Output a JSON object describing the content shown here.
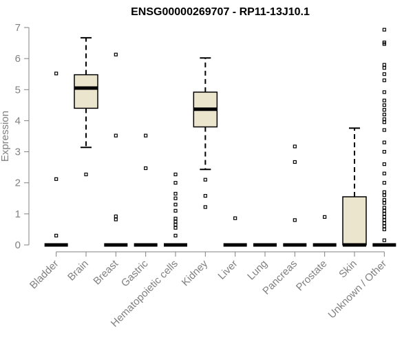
{
  "chart_data": {
    "type": "boxplot",
    "title": "ENSG00000269707 - RP11-13J10.1",
    "xlabel": "",
    "ylabel": "Expression",
    "ylim": [
      0,
      7
    ],
    "yticks": [
      0,
      1,
      2,
      3,
      4,
      5,
      6,
      7
    ],
    "colors": {
      "box_fill": "#ece5cd",
      "stroke": "#000000",
      "axis": "#808080"
    },
    "categories": [
      "Bladder",
      "Brain",
      "Breast",
      "Gastric",
      "Hematopoietic cells",
      "Kidney",
      "Liver",
      "Lung",
      "Pancreas",
      "Prostate",
      "Skin",
      "Unknown / Other"
    ],
    "boxes": [
      {
        "category": "Bladder",
        "q1": 0,
        "median": 0,
        "q3": 0,
        "whisker_low": 0,
        "whisker_high": 0,
        "outliers": [
          0.3,
          2.12,
          5.52
        ]
      },
      {
        "category": "Brain",
        "q1": 4.4,
        "median": 5.05,
        "q3": 5.48,
        "whisker_low": 3.14,
        "whisker_high": 6.67,
        "outliers": [
          2.27
        ]
      },
      {
        "category": "Breast",
        "q1": 0,
        "median": 0,
        "q3": 0,
        "whisker_low": 0,
        "whisker_high": 0,
        "outliers": [
          0.82,
          0.92,
          3.52,
          6.13
        ]
      },
      {
        "category": "Gastric",
        "q1": 0,
        "median": 0,
        "q3": 0,
        "whisker_low": 0,
        "whisker_high": 0,
        "outliers": [
          2.47,
          3.52
        ]
      },
      {
        "category": "Hematopoietic cells",
        "q1": 0,
        "median": 0,
        "q3": 0,
        "whisker_low": 0,
        "whisker_high": 0,
        "outliers": [
          0.3,
          0.55,
          0.65,
          0.75,
          0.85,
          1.1,
          1.3,
          1.5,
          1.65,
          2.0,
          2.27
        ]
      },
      {
        "category": "Kidney",
        "q1": 3.8,
        "median": 4.37,
        "q3": 4.92,
        "whisker_low": 2.43,
        "whisker_high": 6.02,
        "outliers": [
          1.22,
          1.58,
          2.1
        ]
      },
      {
        "category": "Liver",
        "q1": 0,
        "median": 0,
        "q3": 0,
        "whisker_low": 0,
        "whisker_high": 0,
        "outliers": [
          0.86
        ]
      },
      {
        "category": "Lung",
        "q1": 0,
        "median": 0,
        "q3": 0,
        "whisker_low": 0,
        "whisker_high": 0,
        "outliers": []
      },
      {
        "category": "Pancreas",
        "q1": 0,
        "median": 0,
        "q3": 0,
        "whisker_low": 0,
        "whisker_high": 0,
        "outliers": [
          0.8,
          2.67,
          3.17
        ]
      },
      {
        "category": "Prostate",
        "q1": 0,
        "median": 0,
        "q3": 0,
        "whisker_low": 0,
        "whisker_high": 0,
        "outliers": [
          0.9
        ]
      },
      {
        "category": "Skin",
        "q1": 0,
        "median": 0,
        "q3": 1.55,
        "whisker_low": 0,
        "whisker_high": 3.76,
        "outliers": []
      },
      {
        "category": "Unknown / Other",
        "q1": 0,
        "median": 0,
        "q3": 0,
        "whisker_low": 0,
        "whisker_high": 0,
        "outliers": [
          0.15,
          0.5,
          0.6,
          0.7,
          0.8,
          0.9,
          1.0,
          1.1,
          1.2,
          1.35,
          1.45,
          1.6,
          1.7,
          2.0,
          2.3,
          2.6,
          3.0,
          3.3,
          3.7,
          3.95,
          4.05,
          4.2,
          4.35,
          4.5,
          4.65,
          4.92,
          5.3,
          5.5,
          5.7,
          5.8,
          6.47,
          6.52,
          6.93
        ]
      }
    ]
  }
}
